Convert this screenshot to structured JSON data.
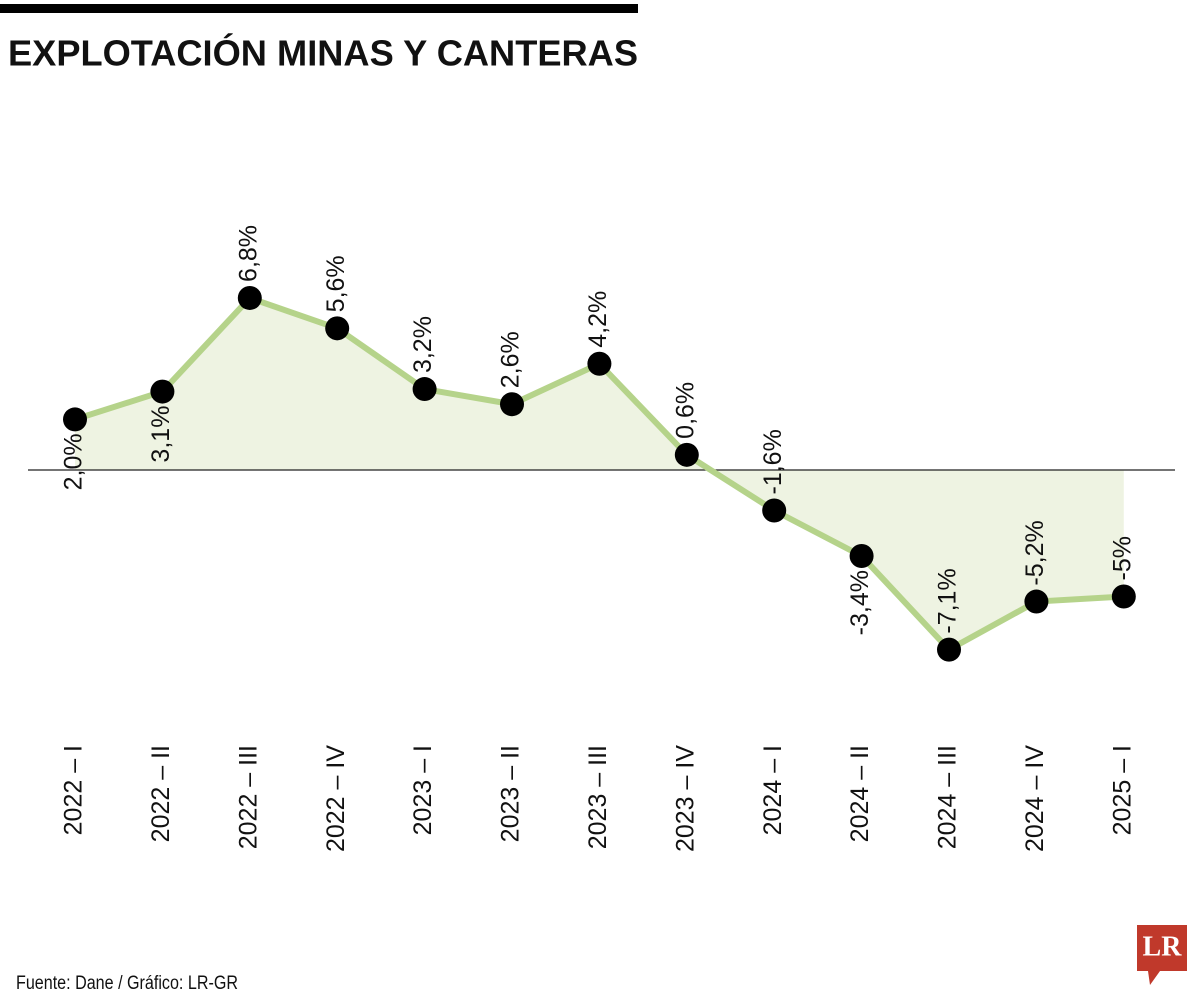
{
  "chart_data": {
    "type": "line",
    "title": "EXPLOTACIÓN MINAS Y CANTERAS",
    "source": "Fuente: Dane / Gráfico: LR-GR",
    "logo": "LR",
    "categories": [
      "2022 – I",
      "2022 – II",
      "2022 – III",
      "2022 – IV",
      "2023 – I",
      "2023 – II",
      "2023 – III",
      "2023 – IV",
      "2024 – I",
      "2024 – II",
      "2024 – III",
      "2024 – IV",
      "2025 – I"
    ],
    "values": [
      2.0,
      3.1,
      6.8,
      5.6,
      3.2,
      2.6,
      4.2,
      0.6,
      -1.6,
      -3.4,
      -7.1,
      -5.2,
      -5
    ],
    "value_labels": [
      "2,0%",
      "3,1%",
      "6,8%",
      "5,6%",
      "3,2%",
      "2,6%",
      "4,2%",
      "0,6%",
      "-1,6%",
      "-3,4%",
      "-7,1%",
      "-5,2%",
      "-5%"
    ],
    "color": "#b5d38a",
    "area_color": "#eef3e2",
    "marker_color": "#000000"
  }
}
